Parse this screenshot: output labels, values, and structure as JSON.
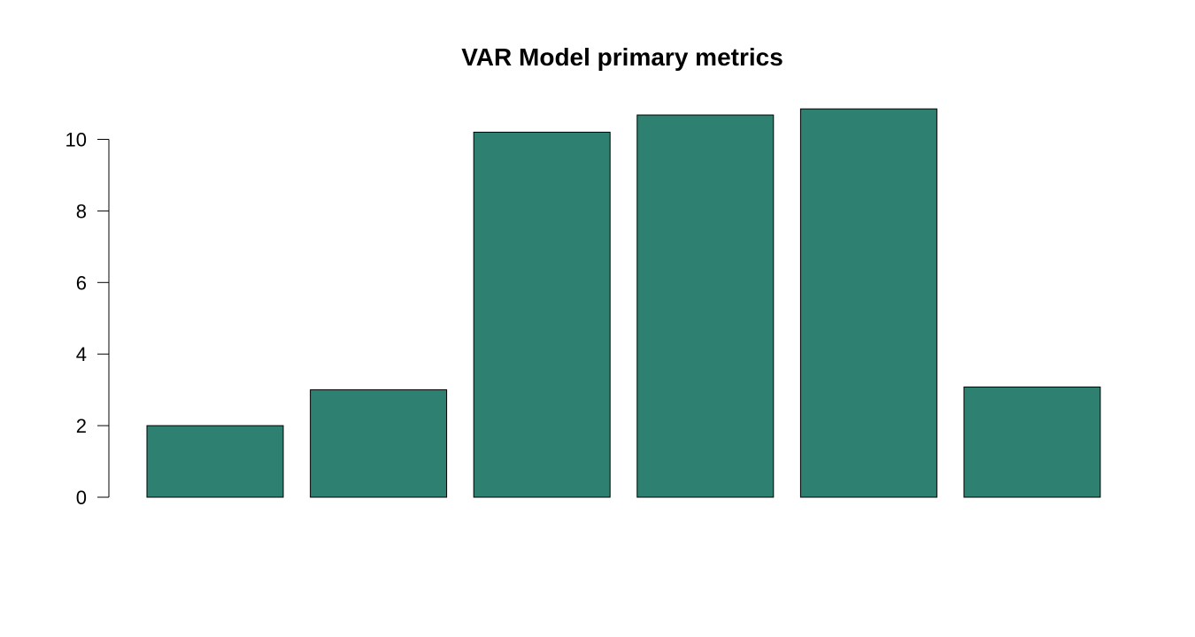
{
  "chart_data": {
    "type": "bar",
    "title": "VAR Model primary metrics",
    "xlabel": "",
    "ylabel": "",
    "categories": [
      "",
      "",
      "",
      "",
      "",
      ""
    ],
    "values": [
      2.0,
      3.0,
      10.2,
      10.68,
      10.85,
      3.08
    ],
    "ylim": [
      0,
      10.85
    ],
    "yticks": [
      "0",
      "2",
      "4",
      "6",
      "8",
      "10"
    ],
    "bar_color": "#2E8070",
    "grid": false,
    "legend": "none"
  }
}
